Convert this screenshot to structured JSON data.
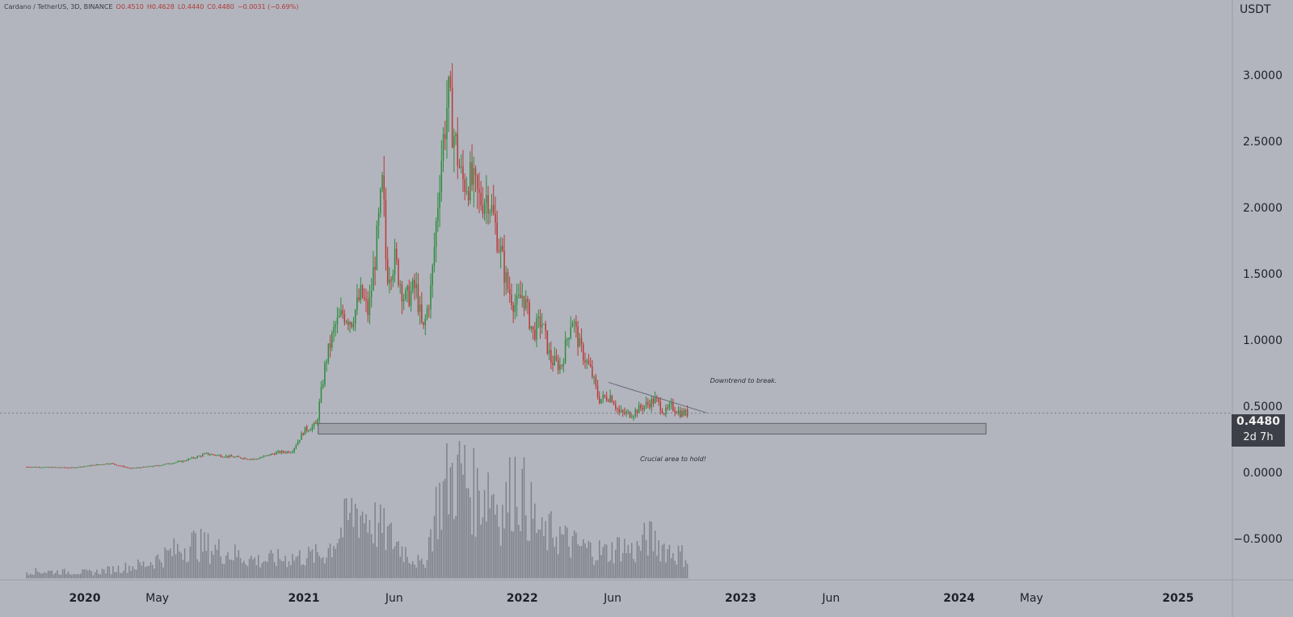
{
  "header": {
    "symbol": "Cardano / TetherUS, 3D, BINANCE",
    "open": "O0.4510",
    "high": "H0.4628",
    "low": "L0.4440",
    "close": "C0.4480",
    "change": "−0.0031 (−0.69%)"
  },
  "price_scale": {
    "currency": "USDT",
    "last_price": "0.4480",
    "countdown": "2d 7h"
  },
  "colors": {
    "background": "#b2b5be",
    "up": "#2e8b3d",
    "down": "#b93a36",
    "volume": "#6d7078",
    "axis_text": "#1e2128",
    "zone_fill": "#9fa2a9",
    "zone_stroke": "#5e6169"
  },
  "chart_data": {
    "type": "candlestick",
    "title": "Cardano / TetherUS, 3D, BINANCE",
    "ylim": [
      -0.8,
      3.5
    ],
    "y_ticks": [
      "3.0000",
      "2.5000",
      "2.0000",
      "1.5000",
      "1.0000",
      "0.5000",
      "0.0000",
      "−0.5000"
    ],
    "x_ticks": [
      {
        "label": "2020",
        "t": "2020-01-01",
        "bold": true
      },
      {
        "label": "May",
        "t": "2020-05-01",
        "bold": false
      },
      {
        "label": "2021",
        "t": "2021-01-01",
        "bold": true
      },
      {
        "label": "Jun",
        "t": "2021-06-01",
        "bold": false
      },
      {
        "label": "2022",
        "t": "2022-01-01",
        "bold": true
      },
      {
        "label": "Jun",
        "t": "2022-06-01",
        "bold": false
      },
      {
        "label": "2023",
        "t": "2023-01-01",
        "bold": true
      },
      {
        "label": "Jun",
        "t": "2023-06-01",
        "bold": false
      },
      {
        "label": "2024",
        "t": "2024-01-01",
        "bold": true
      },
      {
        "label": "May",
        "t": "2024-05-01",
        "bold": false
      },
      {
        "label": "2025",
        "t": "2025-01-01",
        "bold": true
      }
    ],
    "price_path": [
      [
        "2019-09-26",
        0.043
      ],
      [
        "2019-12-15",
        0.036
      ],
      [
        "2020-02-15",
        0.07
      ],
      [
        "2020-03-20",
        0.031
      ],
      [
        "2020-05-01",
        0.05
      ],
      [
        "2020-06-15",
        0.085
      ],
      [
        "2020-07-25",
        0.14
      ],
      [
        "2020-09-01",
        0.12
      ],
      [
        "2020-10-15",
        0.1
      ],
      [
        "2020-11-20",
        0.15
      ],
      [
        "2020-12-15",
        0.16
      ],
      [
        "2021-01-05",
        0.32
      ],
      [
        "2021-01-25",
        0.36
      ],
      [
        "2021-02-10",
        0.85
      ],
      [
        "2021-02-25",
        1.1
      ],
      [
        "2021-03-10",
        1.2
      ],
      [
        "2021-03-25",
        1.15
      ],
      [
        "2021-04-10",
        1.35
      ],
      [
        "2021-04-22",
        1.2
      ],
      [
        "2021-05-05",
        1.7
      ],
      [
        "2021-05-16",
        2.2
      ],
      [
        "2021-05-22",
        1.5
      ],
      [
        "2021-06-05",
        1.6
      ],
      [
        "2021-06-22",
        1.3
      ],
      [
        "2021-07-10",
        1.4
      ],
      [
        "2021-07-22",
        1.05
      ],
      [
        "2021-08-05",
        1.4
      ],
      [
        "2021-08-20",
        2.3
      ],
      [
        "2021-09-02",
        2.85
      ],
      [
        "2021-09-10",
        2.6
      ],
      [
        "2021-09-25",
        2.2
      ],
      [
        "2021-10-10",
        2.2
      ],
      [
        "2021-10-25",
        2.05
      ],
      [
        "2021-11-08",
        2.1
      ],
      [
        "2021-11-25",
        1.75
      ],
      [
        "2021-12-10",
        1.4
      ],
      [
        "2021-12-25",
        1.25
      ],
      [
        "2022-01-05",
        1.35
      ],
      [
        "2022-01-22",
        1.05
      ],
      [
        "2022-02-05",
        1.15
      ],
      [
        "2022-02-20",
        0.85
      ],
      [
        "2022-03-10",
        0.8
      ],
      [
        "2022-03-28",
        1.18
      ],
      [
        "2022-04-10",
        0.95
      ],
      [
        "2022-04-30",
        0.75
      ],
      [
        "2022-05-12",
        0.55
      ],
      [
        "2022-06-01",
        0.58
      ],
      [
        "2022-06-15",
        0.45
      ],
      [
        "2022-07-05",
        0.44
      ],
      [
        "2022-07-25",
        0.5
      ],
      [
        "2022-08-15",
        0.55
      ],
      [
        "2022-08-30",
        0.45
      ],
      [
        "2022-09-10",
        0.5
      ],
      [
        "2022-09-25",
        0.45
      ],
      [
        "2022-10-05",
        0.448
      ]
    ],
    "volume_relative": [
      [
        0,
        0.06
      ],
      [
        0.1,
        0.05
      ],
      [
        0.18,
        0.12
      ],
      [
        0.25,
        0.3
      ],
      [
        0.35,
        0.15
      ],
      [
        0.45,
        0.2
      ],
      [
        0.5,
        0.6
      ],
      [
        0.55,
        0.35
      ],
      [
        0.6,
        0.1
      ],
      [
        0.62,
        0.6
      ],
      [
        0.64,
        0.85
      ],
      [
        0.66,
        0.9
      ],
      [
        0.68,
        0.7
      ],
      [
        0.7,
        0.8
      ],
      [
        0.72,
        0.55
      ],
      [
        0.74,
        0.85
      ],
      [
        0.76,
        0.6
      ],
      [
        0.78,
        0.35
      ],
      [
        0.8,
        0.4
      ],
      [
        0.82,
        0.3
      ],
      [
        0.85,
        0.25
      ],
      [
        0.88,
        0.22
      ],
      [
        0.9,
        0.28
      ],
      [
        0.92,
        0.22
      ],
      [
        0.94,
        0.35
      ],
      [
        0.96,
        0.28
      ],
      [
        0.98,
        0.22
      ],
      [
        1,
        0.18
      ]
    ],
    "support_zone": {
      "low": 0.29,
      "high": 0.37,
      "from": "2021-01-25",
      "to": "2024-02-15"
    },
    "downtrend_line": {
      "from": [
        "2022-05-25",
        0.68
      ],
      "to": [
        "2022-11-05",
        0.45
      ]
    },
    "last_price_line": 0.448
  },
  "annotations": {
    "downtrend": "Downtrend to break.",
    "zone": "Crucial area to hold!"
  }
}
